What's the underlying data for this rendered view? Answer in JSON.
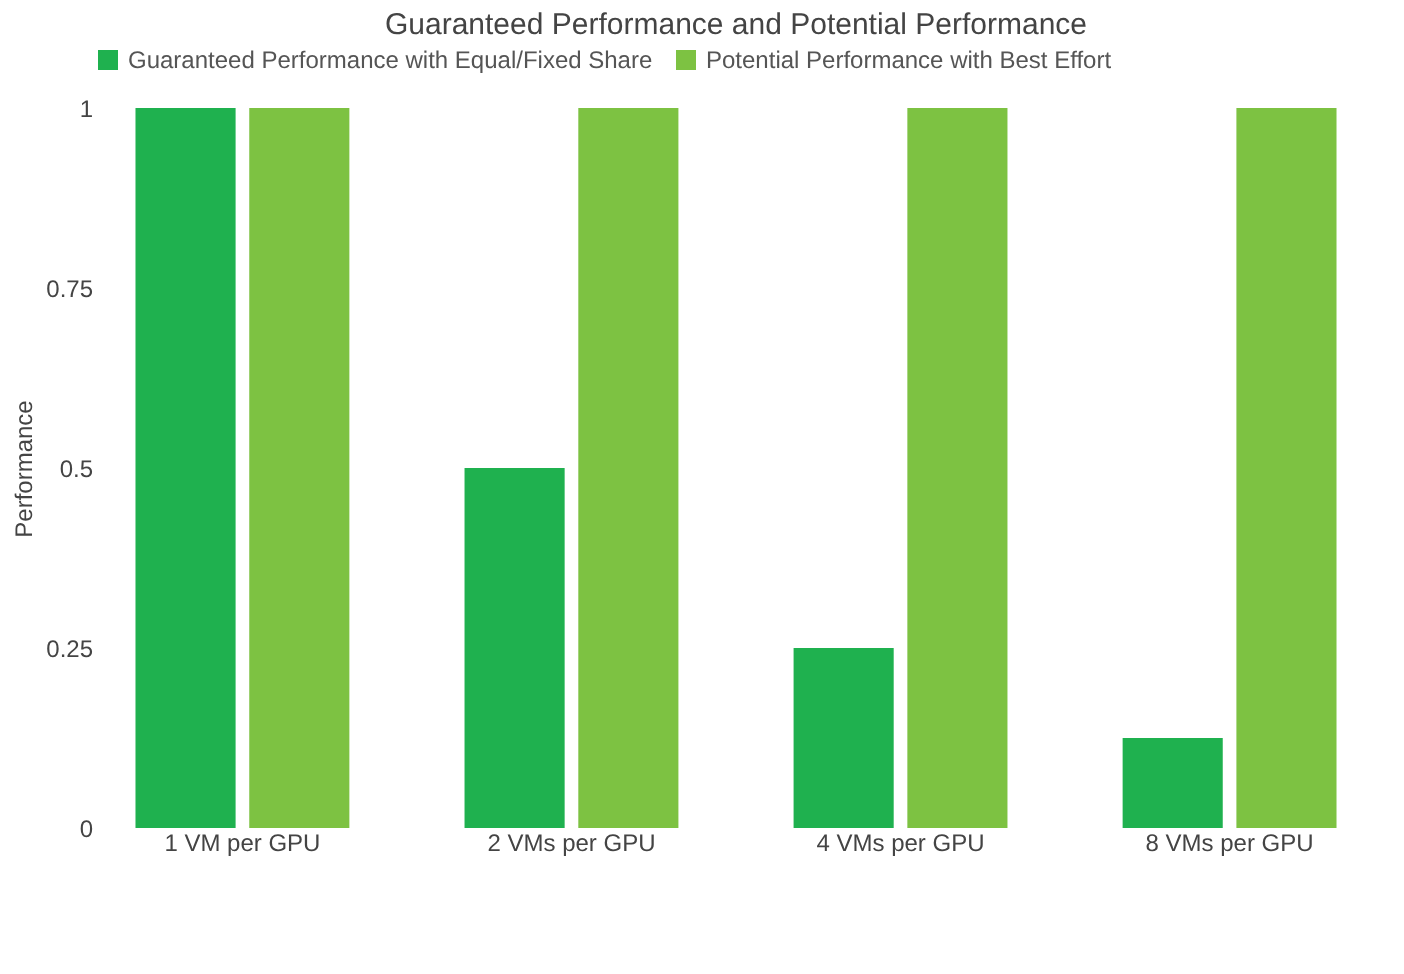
{
  "chart_data": {
    "type": "bar",
    "title": "Guaranteed Performance and Potential Performance",
    "ylabel": "Performance",
    "categories": [
      "1 VM per GPU",
      "2 VMs per GPU",
      "4 VMs per GPU",
      "8 VMs per GPU"
    ],
    "series": [
      {
        "name": "Guaranteed Performance with Equal/Fixed Share",
        "color": "#1fb14f",
        "values": [
          1,
          0.5,
          0.25,
          0.125
        ]
      },
      {
        "name": "Potential Performance with Best Effort",
        "color": "#7dc242",
        "values": [
          1,
          1,
          1,
          1
        ]
      }
    ],
    "ylim": [
      0,
      1
    ],
    "yticks": [
      0,
      0.25,
      0.5,
      0.75,
      1
    ],
    "grid": false,
    "legend": "top"
  }
}
